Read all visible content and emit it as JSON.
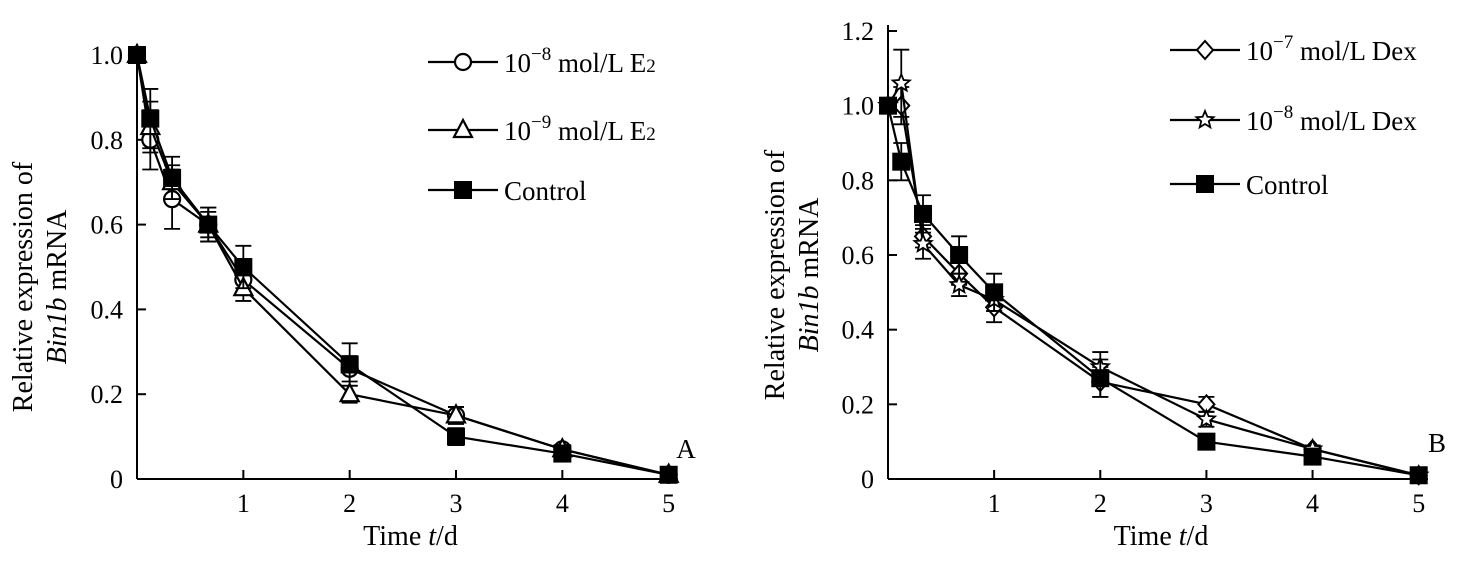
{
  "chart_data": [
    {
      "type": "line",
      "panel_label": "A",
      "xlabel": {
        "prefix": "Time ",
        "italic": "t",
        "suffix": "/d"
      },
      "ylabel": {
        "line1": "Relative expression of",
        "line2_italic": "Bin1b",
        "line2_rest": " mRNA"
      },
      "xticks": [
        1,
        2,
        3,
        4,
        5
      ],
      "xtick_labels": [
        "1",
        "2",
        "3",
        "4",
        "5"
      ],
      "yticks": [
        0,
        0.2,
        0.4,
        0.6,
        0.8,
        1.0
      ],
      "ytick_labels": [
        "0",
        "0.2",
        "0.4",
        "0.6",
        "0.8",
        "1.0"
      ],
      "xlim": [
        0,
        5.05
      ],
      "ylim": [
        0,
        1.0
      ],
      "legend_position": "top-right",
      "series": [
        {
          "name": "10⁻⁸ mol/L E₂",
          "legend_parts": [
            "10",
            "−8",
            " mol/L E",
            "2"
          ],
          "marker": "circle",
          "x": [
            0,
            0.125,
            0.33,
            0.67,
            1,
            2,
            3,
            4,
            5
          ],
          "y": [
            1.0,
            0.8,
            0.66,
            0.6,
            0.47,
            0.26,
            0.15,
            0.07,
            0.01
          ],
          "err": [
            0,
            0.07,
            0.07,
            0.04,
            0.03,
            0.03,
            0.02,
            0.01,
            0
          ]
        },
        {
          "name": "10⁻⁹ mol/L E₂",
          "legend_parts": [
            "10",
            "−9",
            " mol/L E",
            "2"
          ],
          "marker": "triangle",
          "x": [
            0,
            0.125,
            0.33,
            0.67,
            1,
            2,
            3,
            4,
            5
          ],
          "y": [
            1.0,
            0.83,
            0.7,
            0.6,
            0.45,
            0.2,
            0.15,
            0.07,
            0.01
          ],
          "err": [
            0,
            0.06,
            0.04,
            0.03,
            0.03,
            0.02,
            0.02,
            0.01,
            0
          ]
        },
        {
          "name": "Control",
          "legend_parts": [
            "Control",
            "",
            "",
            ""
          ],
          "marker": "square",
          "x": [
            0,
            0.125,
            0.33,
            0.67,
            1,
            2,
            3,
            4,
            5
          ],
          "y": [
            1.0,
            0.85,
            0.71,
            0.6,
            0.5,
            0.27,
            0.1,
            0.06,
            0.01
          ],
          "err": [
            0,
            0.07,
            0.05,
            0.04,
            0.05,
            0.05,
            0.02,
            0.01,
            0
          ]
        }
      ]
    },
    {
      "type": "line",
      "panel_label": "B",
      "xlabel": {
        "prefix": "Time ",
        "italic": "t",
        "suffix": "/d"
      },
      "ylabel": {
        "line1": "Relative expression of",
        "line2_italic": "Bin1b",
        "line2_rest": " mRNA"
      },
      "xticks": [
        1,
        2,
        3,
        4,
        5
      ],
      "xtick_labels": [
        "1",
        "2",
        "3",
        "4",
        "5"
      ],
      "yticks": [
        0,
        0.2,
        0.4,
        0.6,
        0.8,
        1.0,
        1.2
      ],
      "ytick_labels": [
        "0",
        "0.2",
        "0.4",
        "0.6",
        "0.8",
        "1.0",
        "1.2"
      ],
      "xlim": [
        0,
        5.05
      ],
      "ylim": [
        0,
        1.2
      ],
      "legend_position": "top-right",
      "series": [
        {
          "name": "10⁻⁷ mol/L Dex",
          "legend_parts": [
            "10",
            "−7",
            " mol/L Dex",
            ""
          ],
          "marker": "diamond",
          "x": [
            0,
            0.125,
            0.33,
            0.67,
            1,
            2,
            3,
            4,
            5
          ],
          "y": [
            1.0,
            1.0,
            0.65,
            0.55,
            0.46,
            0.26,
            0.2,
            0.08,
            0.01
          ],
          "err": [
            0,
            0.05,
            0.03,
            0.03,
            0.04,
            0.04,
            0.02,
            0.01,
            0
          ]
        },
        {
          "name": "10⁻⁸ mol/L Dex",
          "legend_parts": [
            "10",
            "−8",
            " mol/L Dex",
            ""
          ],
          "marker": "star",
          "x": [
            0,
            0.125,
            0.33,
            0.67,
            1,
            2,
            3,
            4,
            5
          ],
          "y": [
            1.0,
            1.06,
            0.63,
            0.52,
            0.48,
            0.3,
            0.16,
            0.08,
            0.01
          ],
          "err": [
            0,
            0.09,
            0.04,
            0.03,
            0.03,
            0.04,
            0.02,
            0.01,
            0
          ]
        },
        {
          "name": "Control",
          "legend_parts": [
            "Control",
            "",
            "",
            ""
          ],
          "marker": "square",
          "x": [
            0,
            0.125,
            0.33,
            0.67,
            1,
            2,
            3,
            4,
            5
          ],
          "y": [
            1.0,
            0.85,
            0.71,
            0.6,
            0.5,
            0.27,
            0.1,
            0.06,
            0.01
          ],
          "err": [
            0,
            0.05,
            0.05,
            0.05,
            0.05,
            0.05,
            0.02,
            0.01,
            0
          ]
        }
      ]
    }
  ]
}
